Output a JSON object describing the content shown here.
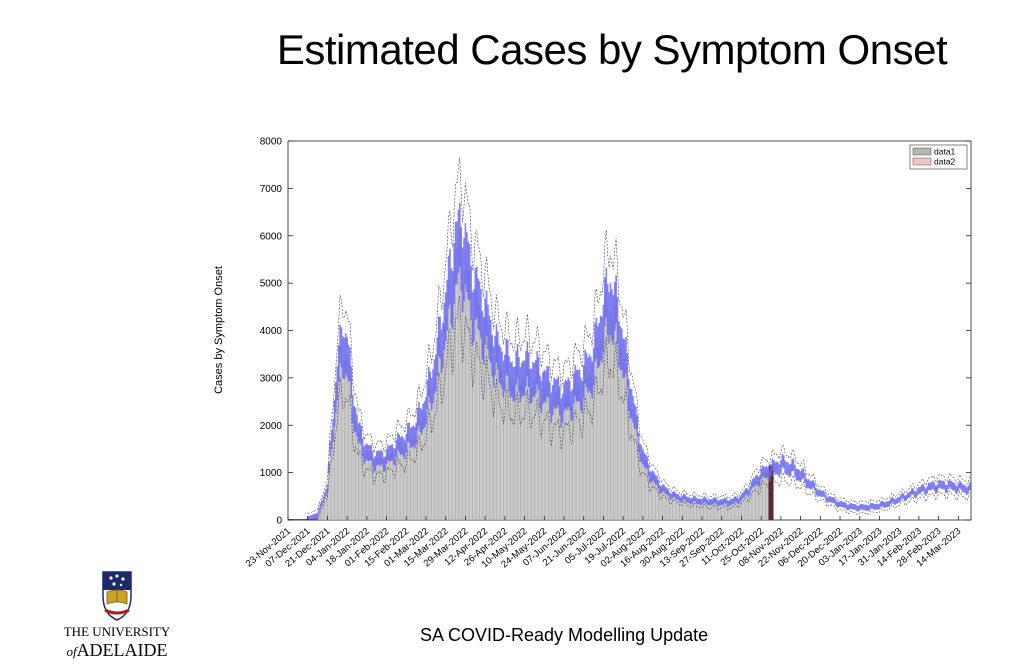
{
  "slide": {
    "title": "Estimated Cases by Symptom Onset",
    "footer": "SA COVID-Ready Modelling Update",
    "logo": {
      "line1": "THE UNIVERSITY",
      "line2_prefix": "of",
      "line2": "ADELAIDE",
      "icon": "university-crest-icon"
    }
  },
  "chart_data": {
    "type": "bar",
    "ylabel": "Cases by Symptom Onset",
    "xlabel": "",
    "ylim": [
      0,
      8000
    ],
    "yticks": [
      0,
      1000,
      2000,
      3000,
      4000,
      5000,
      6000,
      7000,
      8000
    ],
    "xlim": [
      "2021-11-23",
      "2023-03-23"
    ],
    "xtick_labels": [
      "23-Nov-2021",
      "07-Dec-2021",
      "21-Dec-2021",
      "04-Jan-2022",
      "18-Jan-2022",
      "01-Feb-2022",
      "15-Feb-2022",
      "01-Mar-2022",
      "15-Mar-2022",
      "29-Mar-2022",
      "12-Apr-2022",
      "26-Apr-2022",
      "10-May-2022",
      "24-May-2022",
      "07-Jun-2022",
      "21-Jun-2022",
      "05-Jul-2022",
      "19-Jul-2022",
      "02-Aug-2022",
      "16-Aug-2022",
      "30-Aug-2022",
      "13-Sep-2022",
      "27-Sep-2022",
      "11-Oct-2022",
      "25-Oct-2022",
      "08-Nov-2022",
      "22-Nov-2022",
      "06-Dec-2022",
      "20-Dec-2022",
      "03-Jan-2023",
      "17-Jan-2023",
      "31-Jan-2023",
      "14-Feb-2023",
      "28-Feb-2023",
      "14-Mar-2023"
    ],
    "legend": {
      "placement": "top-right",
      "entries": [
        "data1",
        "data2"
      ]
    },
    "colors": {
      "data1": "#b4b4b4",
      "data2": "#f2c4c4",
      "model_band": "#6a6af0",
      "ci_lines": "#444444",
      "marker": "#5a2a2a"
    },
    "grid": false,
    "series": [
      {
        "name": "data1",
        "role": "estimated daily cases by symptom onset",
        "points": [
          [
            "2021-11-23",
            0
          ],
          [
            "2021-12-07",
            10
          ],
          [
            "2021-12-14",
            100
          ],
          [
            "2021-12-21",
            700
          ],
          [
            "2021-12-28",
            3000
          ],
          [
            "2022-01-01",
            3700
          ],
          [
            "2022-01-04",
            3500
          ],
          [
            "2022-01-08",
            2500
          ],
          [
            "2022-01-12",
            1800
          ],
          [
            "2022-01-18",
            1400
          ],
          [
            "2022-01-25",
            1250
          ],
          [
            "2022-02-01",
            1300
          ],
          [
            "2022-02-08",
            1500
          ],
          [
            "2022-02-15",
            1650
          ],
          [
            "2022-02-22",
            1900
          ],
          [
            "2022-03-01",
            2400
          ],
          [
            "2022-03-08",
            3200
          ],
          [
            "2022-03-15",
            4300
          ],
          [
            "2022-03-22",
            5500
          ],
          [
            "2022-03-27",
            5700
          ],
          [
            "2022-04-02",
            4800
          ],
          [
            "2022-04-12",
            4100
          ],
          [
            "2022-04-20",
            3400
          ],
          [
            "2022-04-26",
            3200
          ],
          [
            "2022-05-03",
            3000
          ],
          [
            "2022-05-10",
            3100
          ],
          [
            "2022-05-17",
            3000
          ],
          [
            "2022-05-24",
            2800
          ],
          [
            "2022-05-31",
            2600
          ],
          [
            "2022-06-07",
            2500
          ],
          [
            "2022-06-14",
            2700
          ],
          [
            "2022-06-21",
            2900
          ],
          [
            "2022-06-28",
            3300
          ],
          [
            "2022-07-05",
            4200
          ],
          [
            "2022-07-10",
            4600
          ],
          [
            "2022-07-16",
            4000
          ],
          [
            "2022-07-22",
            3000
          ],
          [
            "2022-07-28",
            2000
          ],
          [
            "2022-08-02",
            1300
          ],
          [
            "2022-08-09",
            900
          ],
          [
            "2022-08-16",
            650
          ],
          [
            "2022-08-23",
            520
          ],
          [
            "2022-08-30",
            460
          ],
          [
            "2022-09-06",
            420
          ],
          [
            "2022-09-13",
            400
          ],
          [
            "2022-09-20",
            390
          ],
          [
            "2022-09-27",
            380
          ],
          [
            "2022-10-04",
            380
          ],
          [
            "2022-10-11",
            470
          ],
          [
            "2022-10-18",
            700
          ],
          [
            "2022-10-25",
            950
          ],
          [
            "2022-11-01",
            1050
          ]
        ]
      },
      {
        "name": "data2",
        "role": "projection",
        "points": [
          [
            "2022-11-01",
            1050
          ],
          [
            "2022-11-08",
            1150
          ],
          [
            "2022-11-15",
            1100
          ],
          [
            "2022-11-22",
            950
          ],
          [
            "2022-11-29",
            750
          ],
          [
            "2022-12-06",
            560
          ],
          [
            "2022-12-13",
            430
          ],
          [
            "2022-12-20",
            330
          ],
          [
            "2022-12-27",
            280
          ],
          [
            "2023-01-03",
            260
          ],
          [
            "2023-01-10",
            270
          ],
          [
            "2023-01-17",
            300
          ],
          [
            "2023-01-24",
            360
          ],
          [
            "2023-01-31",
            440
          ],
          [
            "2023-02-07",
            530
          ],
          [
            "2023-02-14",
            610
          ],
          [
            "2023-02-21",
            680
          ],
          [
            "2023-02-28",
            720
          ],
          [
            "2023-03-07",
            720
          ],
          [
            "2023-03-14",
            690
          ],
          [
            "2023-03-23",
            650
          ]
        ]
      }
    ]
  }
}
